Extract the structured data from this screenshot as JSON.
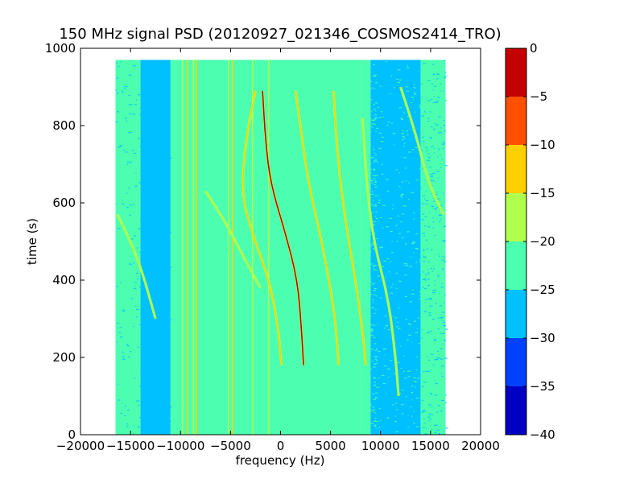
{
  "chart_data": {
    "type": "heatmap",
    "title": "150 MHz signal PSD (20120927_021346_COSMOS2414_TRO)",
    "xlabel": "frequency (Hz)",
    "ylabel": "time (s)",
    "xlim": [
      -20000,
      20000
    ],
    "ylim": [
      0,
      1000
    ],
    "xticks": [
      "−20000",
      "−15000",
      "−10000",
      "−5000",
      "0",
      "5000",
      "10000",
      "15000",
      "20000"
    ],
    "xtick_values": [
      -20000,
      -15000,
      -10000,
      -5000,
      0,
      5000,
      10000,
      15000,
      20000
    ],
    "yticks": [
      "0",
      "200",
      "400",
      "600",
      "800",
      "1000"
    ],
    "ytick_values": [
      0,
      200,
      400,
      600,
      800,
      1000
    ],
    "grid": false,
    "data_extent": {
      "x": [
        -16500,
        16500
      ],
      "y": [
        0,
        970
      ]
    },
    "regions": [
      {
        "x": [
          -16500,
          -14000
        ],
        "level": -22.5
      },
      {
        "x": [
          -14000,
          -11000
        ],
        "level": -26
      },
      {
        "x": [
          -11000,
          8000
        ],
        "level": -22.5
      },
      {
        "x": [
          8000,
          9000
        ],
        "level": -24
      },
      {
        "x": [
          9000,
          14000
        ],
        "level": -27.5
      },
      {
        "x": [
          14000,
          16500
        ],
        "level": -24
      }
    ],
    "vertical_lines": [
      {
        "x": -9800,
        "level": -17
      },
      {
        "x": -9300,
        "level": -12
      },
      {
        "x": -8700,
        "level": -17
      },
      {
        "x": -8400,
        "level": -12
      },
      {
        "x": -5200,
        "level": -17
      },
      {
        "x": -4800,
        "level": -12
      },
      {
        "x": -2800,
        "level": -20
      },
      {
        "x": -1200,
        "level": -20
      }
    ],
    "tracks": [
      {
        "name": "t1",
        "level": -12,
        "points": [
          [
            -2500,
            890
          ],
          [
            -3500,
            760
          ],
          [
            -3900,
            620
          ],
          [
            -2800,
            520
          ],
          [
            -1000,
            390
          ],
          [
            -200,
            270
          ],
          [
            100,
            180
          ]
        ]
      },
      {
        "name": "t2",
        "level": -5,
        "points": [
          [
            -1800,
            890
          ],
          [
            -1500,
            760
          ],
          [
            -1000,
            650
          ],
          [
            500,
            520
          ],
          [
            1700,
            400
          ],
          [
            2100,
            270
          ],
          [
            2300,
            180
          ]
        ]
      },
      {
        "name": "t3",
        "level": -12,
        "points": [
          [
            1500,
            890
          ],
          [
            2200,
            760
          ],
          [
            2800,
            650
          ],
          [
            4300,
            480
          ],
          [
            5500,
            300
          ],
          [
            5800,
            180
          ]
        ]
      },
      {
        "name": "t4",
        "level": -12,
        "points": [
          [
            5300,
            890
          ],
          [
            5600,
            760
          ],
          [
            6000,
            650
          ],
          [
            6700,
            520
          ],
          [
            7500,
            400
          ],
          [
            8300,
            250
          ],
          [
            8500,
            180
          ]
        ]
      },
      {
        "name": "t5",
        "level": -17,
        "points": [
          [
            8200,
            820
          ],
          [
            8600,
            650
          ],
          [
            9300,
            500
          ],
          [
            10800,
            350
          ],
          [
            11500,
            200
          ],
          [
            11800,
            100
          ]
        ]
      },
      {
        "name": "t6",
        "level": -17,
        "points": [
          [
            -16300,
            570
          ],
          [
            -15000,
            500
          ],
          [
            -13800,
            420
          ],
          [
            -12500,
            300
          ]
        ]
      },
      {
        "name": "t7",
        "level": -17,
        "points": [
          [
            12000,
            900
          ],
          [
            13500,
            780
          ],
          [
            14800,
            650
          ],
          [
            16300,
            570
          ]
        ]
      },
      {
        "name": "t8",
        "level": -17,
        "points": [
          [
            -7500,
            630
          ],
          [
            -5500,
            550
          ],
          [
            -3500,
            450
          ],
          [
            -2000,
            380
          ]
        ]
      }
    ],
    "colorbar": {
      "min": -40,
      "max": 0,
      "ticks": [
        "0",
        "−5",
        "−10",
        "−15",
        "−20",
        "−25",
        "−30",
        "−35",
        "−40"
      ],
      "tick_values": [
        0,
        -5,
        -10,
        -15,
        -20,
        -25,
        -30,
        -35,
        -40
      ],
      "bands": [
        {
          "from": -40,
          "to": -35,
          "color": "#0000c4"
        },
        {
          "from": -35,
          "to": -30,
          "color": "#0040ff"
        },
        {
          "from": -30,
          "to": -25,
          "color": "#00c0ff"
        },
        {
          "from": -25,
          "to": -20,
          "color": "#4cffb0"
        },
        {
          "from": -20,
          "to": -15,
          "color": "#b0ff4c"
        },
        {
          "from": -15,
          "to": -10,
          "color": "#ffd000"
        },
        {
          "from": -10,
          "to": -5,
          "color": "#ff5000"
        },
        {
          "from": -5,
          "to": 0,
          "color": "#c40000"
        }
      ]
    }
  }
}
